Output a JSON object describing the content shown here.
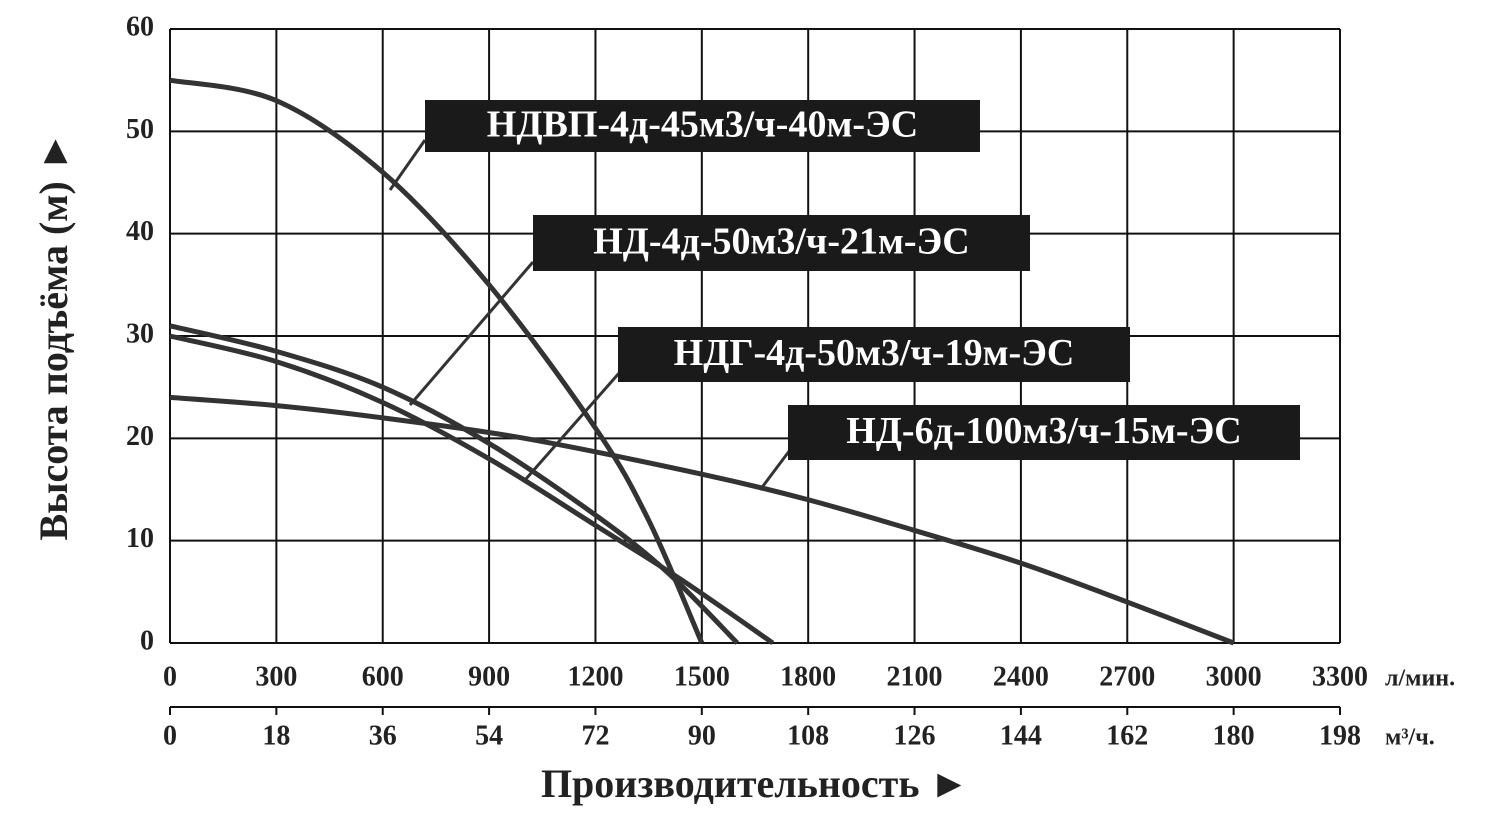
{
  "chart_data": {
    "type": "line",
    "y_label": "Высота подъёма (м) ►",
    "x_label": "Производительность ►",
    "x_unit": "л/мин.",
    "x2_unit": "м³/ч.",
    "xlim": [
      0,
      3300
    ],
    "xticks": [
      0,
      300,
      600,
      900,
      1200,
      1500,
      1800,
      2100,
      2400,
      2700,
      3000,
      3300
    ],
    "x2lim": [
      0,
      198
    ],
    "x2ticks": [
      0,
      18,
      36,
      54,
      72,
      90,
      108,
      126,
      144,
      162,
      180,
      198
    ],
    "ylim": [
      0,
      60
    ],
    "yticks": [
      0,
      10,
      20,
      30,
      40,
      50,
      60
    ],
    "grid": true,
    "series": [
      {
        "name": "НДВП-4д-45м3/ч-40м-ЭС",
        "color": "#333333",
        "x": [
          0,
          300,
          600,
          900,
          1200,
          1350,
          1500
        ],
        "values": [
          55,
          53,
          46,
          35,
          21,
          12,
          0
        ]
      },
      {
        "name": "НД-4д-50м3/ч-21м-ЭС",
        "color": "#333333",
        "x": [
          0,
          300,
          600,
          900,
          1200,
          1400,
          1600
        ],
        "values": [
          31,
          28.5,
          25,
          19.5,
          12.5,
          7,
          0
        ]
      },
      {
        "name": "НДГ-4д-50м3/ч-19м-ЭС",
        "color": "#333333",
        "x": [
          0,
          300,
          600,
          900,
          1200,
          1450,
          1700
        ],
        "values": [
          30,
          27.5,
          23.5,
          18,
          11.5,
          6,
          0
        ]
      },
      {
        "name": "НД-6д-100м3/ч-15м-ЭС",
        "color": "#333333",
        "x": [
          0,
          300,
          600,
          1000,
          1500,
          1800,
          2100,
          2400,
          2700,
          3000
        ],
        "values": [
          24,
          23.2,
          22,
          20,
          16.5,
          14,
          11,
          7.8,
          4,
          0
        ]
      }
    ]
  }
}
